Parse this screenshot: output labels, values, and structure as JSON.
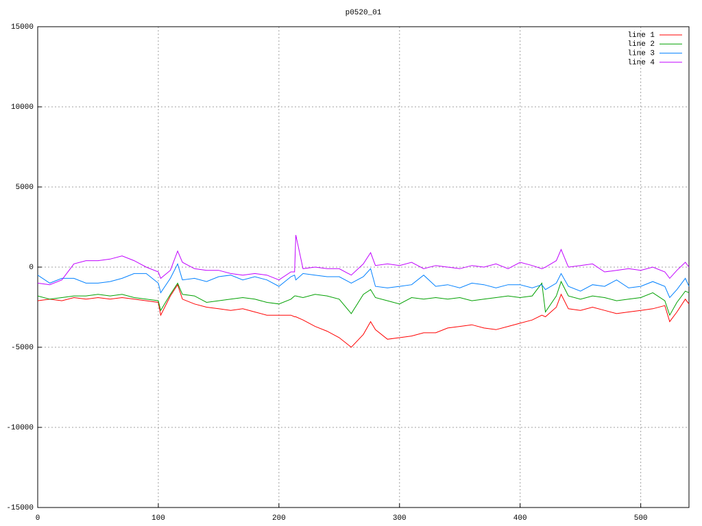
{
  "chart_data": {
    "type": "line",
    "title": "p0520_01",
    "x": [
      0,
      10,
      20,
      30,
      40,
      50,
      60,
      70,
      80,
      90,
      100,
      102,
      110,
      116,
      120,
      130,
      140,
      150,
      160,
      170,
      180,
      190,
      200,
      210,
      213,
      214,
      220,
      230,
      240,
      250,
      260,
      270,
      276,
      280,
      290,
      300,
      310,
      320,
      330,
      340,
      350,
      360,
      370,
      380,
      390,
      400,
      410,
      418,
      421,
      430,
      434,
      440,
      450,
      460,
      470,
      480,
      490,
      500,
      510,
      520,
      524,
      530,
      537,
      540
    ],
    "series": [
      {
        "name": "line 1",
        "color": "#ff0000",
        "values": [
          -2100,
          -2000,
          -2100,
          -1900,
          -2000,
          -1900,
          -2000,
          -1900,
          -2000,
          -2100,
          -2200,
          -3000,
          -1800,
          -1100,
          -2000,
          -2300,
          -2500,
          -2600,
          -2700,
          -2600,
          -2800,
          -3000,
          -3000,
          -3000,
          -3100,
          -3100,
          -3300,
          -3700,
          -4000,
          -4400,
          -5000,
          -4200,
          -3400,
          -3900,
          -4500,
          -4400,
          -4300,
          -4100,
          -4100,
          -3800,
          -3700,
          -3600,
          -3800,
          -3900,
          -3700,
          -3500,
          -3300,
          -3000,
          -3100,
          -2500,
          -1700,
          -2600,
          -2700,
          -2500,
          -2700,
          -2900,
          -2800,
          -2700,
          -2600,
          -2400,
          -3400,
          -2800,
          -2000,
          -2300
        ]
      },
      {
        "name": "line 2",
        "color": "#00a000",
        "values": [
          -1800,
          -2000,
          -1900,
          -1800,
          -1800,
          -1700,
          -1800,
          -1700,
          -1900,
          -2000,
          -2100,
          -2700,
          -1700,
          -1000,
          -1700,
          -1800,
          -2200,
          -2100,
          -2000,
          -1900,
          -2000,
          -2200,
          -2300,
          -2000,
          -1800,
          -1800,
          -1900,
          -1700,
          -1800,
          -2000,
          -2900,
          -1700,
          -1400,
          -1900,
          -2100,
          -2300,
          -1900,
          -2000,
          -1900,
          -2000,
          -1900,
          -2100,
          -2000,
          -1900,
          -1800,
          -1900,
          -1800,
          -1000,
          -2800,
          -1800,
          -900,
          -1800,
          -2000,
          -1800,
          -1900,
          -2100,
          -2000,
          -1900,
          -1600,
          -2100,
          -3000,
          -2200,
          -1500,
          -1600
        ]
      },
      {
        "name": "line 3",
        "color": "#0080ff",
        "values": [
          -500,
          -1000,
          -700,
          -700,
          -1000,
          -1000,
          -900,
          -700,
          -400,
          -400,
          -1000,
          -1600,
          -700,
          200,
          -800,
          -700,
          -900,
          -600,
          -500,
          -800,
          -600,
          -800,
          -1200,
          -600,
          -500,
          -800,
          -400,
          -500,
          -600,
          -600,
          -1000,
          -600,
          -100,
          -1200,
          -1300,
          -1200,
          -1100,
          -500,
          -1200,
          -1100,
          -1300,
          -1000,
          -1100,
          -1300,
          -1100,
          -1100,
          -1300,
          -1100,
          -1400,
          -1000,
          -400,
          -1200,
          -1500,
          -1100,
          -1200,
          -800,
          -1300,
          -1200,
          -900,
          -1200,
          -1900,
          -1400,
          -700,
          -1200
        ]
      },
      {
        "name": "line 4",
        "color": "#c000ff",
        "values": [
          -1000,
          -1100,
          -800,
          200,
          400,
          400,
          500,
          700,
          400,
          0,
          -300,
          -700,
          -200,
          1000,
          300,
          -100,
          -200,
          -200,
          -400,
          -500,
          -400,
          -500,
          -800,
          -300,
          -300,
          2000,
          -100,
          0,
          -100,
          -100,
          -500,
          200,
          900,
          100,
          200,
          100,
          300,
          -100,
          100,
          0,
          -100,
          100,
          0,
          200,
          -100,
          300,
          100,
          -100,
          0,
          400,
          1100,
          0,
          100,
          200,
          -300,
          -200,
          -100,
          -200,
          0,
          -300,
          -700,
          -200,
          300,
          0
        ]
      }
    ],
    "xlim": [
      0,
      540
    ],
    "ylim": [
      -15000,
      15000
    ],
    "xticks": [
      0,
      100,
      200,
      300,
      400,
      500
    ],
    "yticks": [
      -15000,
      -10000,
      -5000,
      0,
      5000,
      10000,
      15000
    ],
    "grid": true,
    "legend": "top-right"
  }
}
